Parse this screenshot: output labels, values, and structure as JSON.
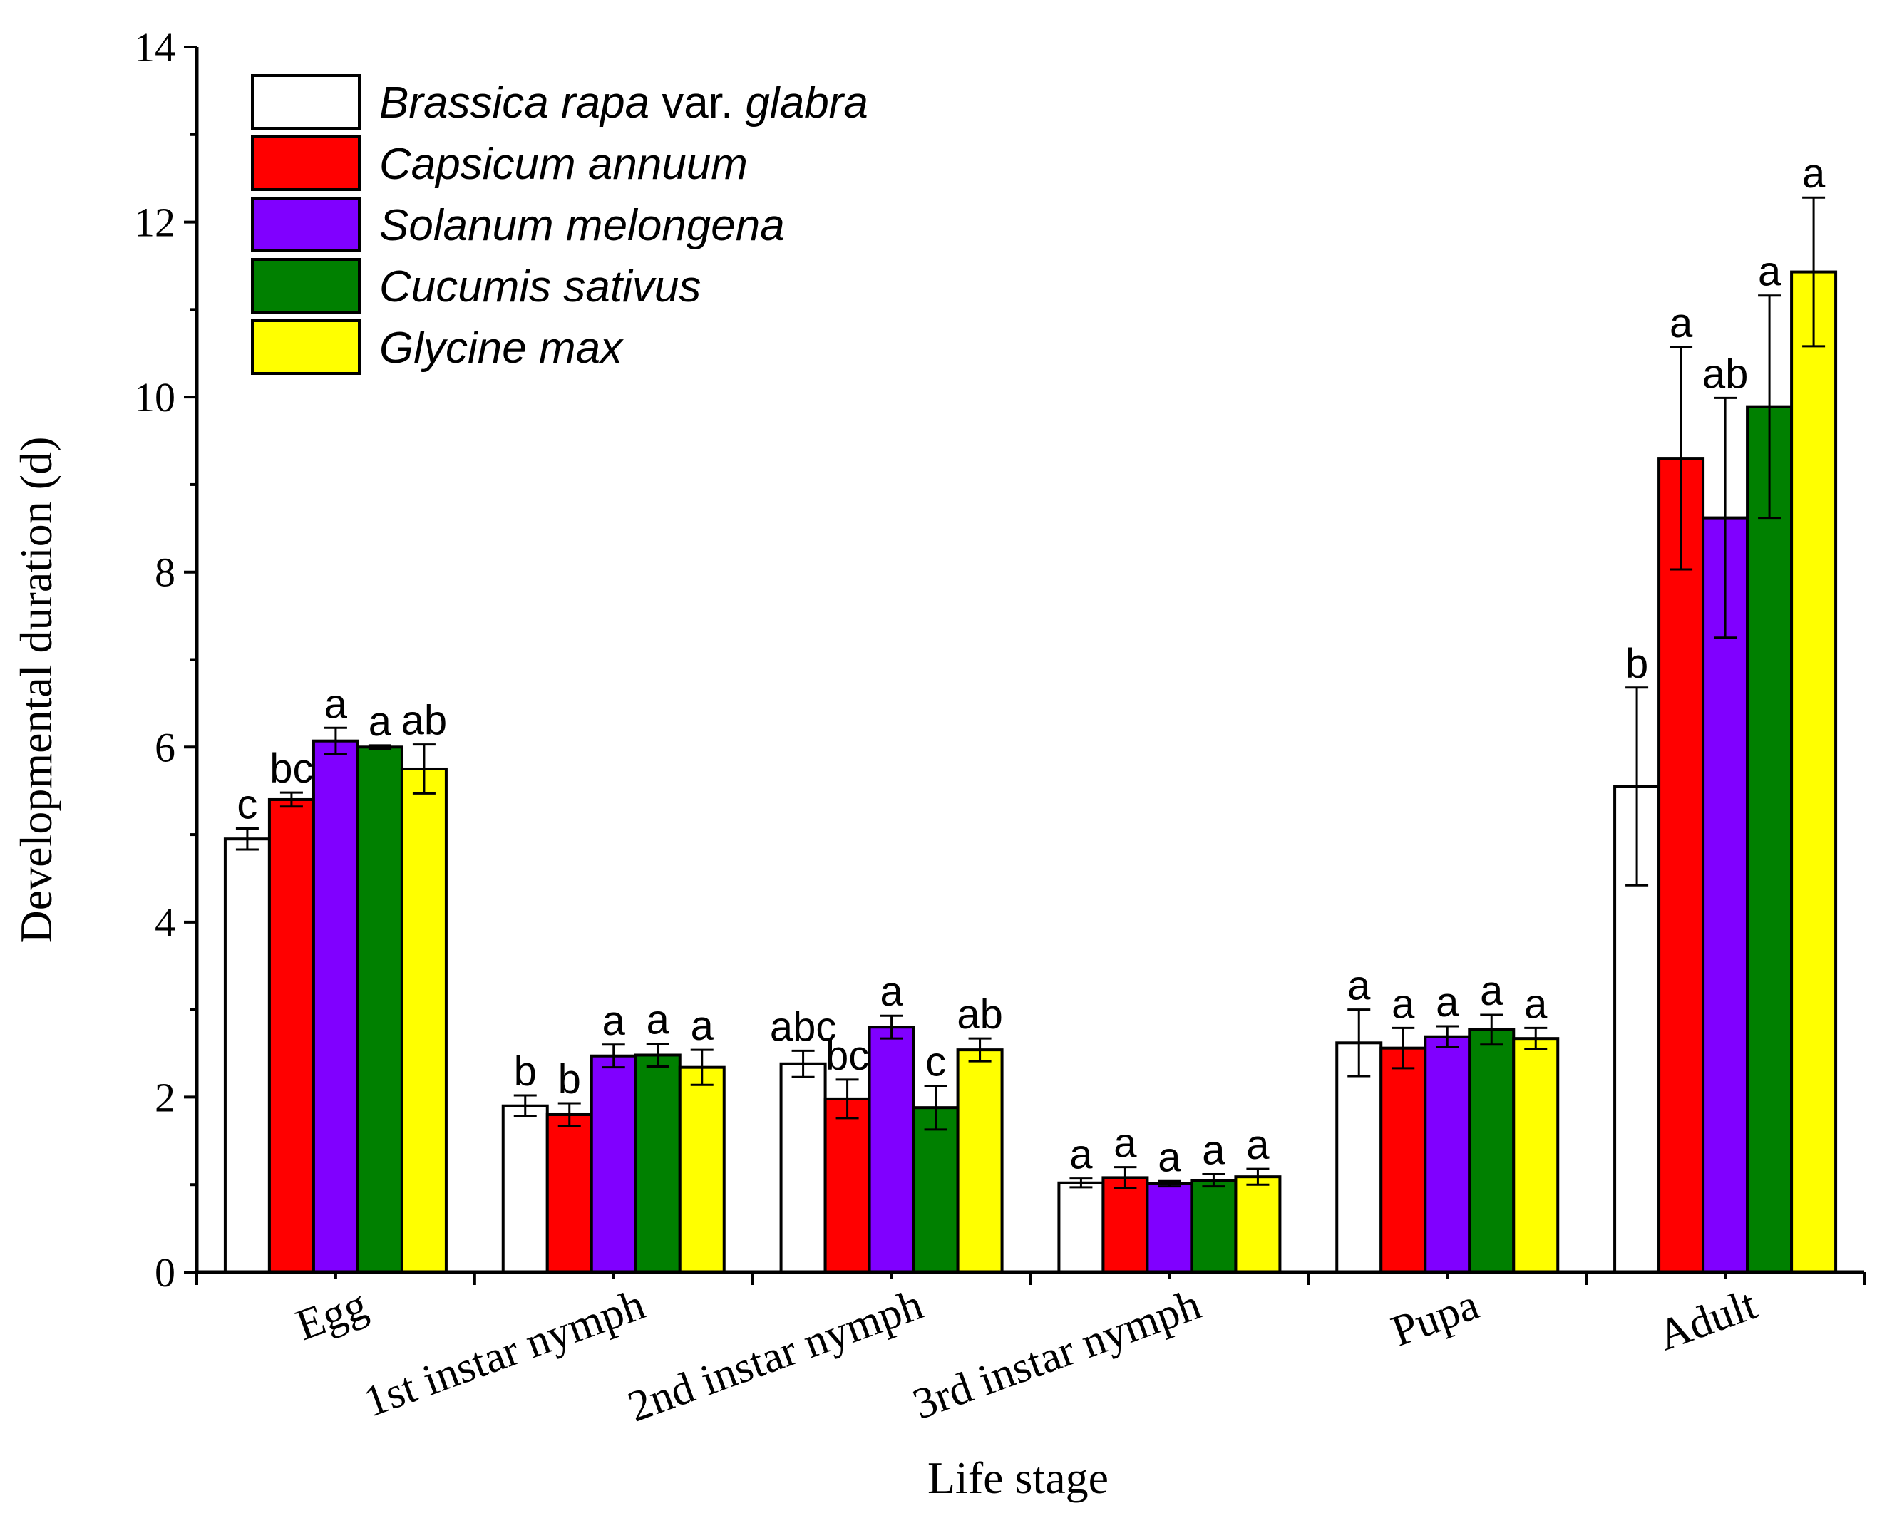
{
  "chart_data": {
    "type": "bar",
    "title": "",
    "xlabel": "Life stage",
    "ylabel": "Developmental duration (d)",
    "ylim": [
      0,
      14
    ],
    "yticks": [
      0,
      2,
      4,
      6,
      8,
      10,
      12,
      14
    ],
    "categories": [
      "Egg",
      "1st instar nymph",
      "2nd instar nymph",
      "3rd instar nymph",
      "Pupa",
      "Adult"
    ],
    "legend_position": "top-left",
    "series": [
      {
        "name": "Brassica rapa var. glabra",
        "legend_parts": [
          {
            "text": "Brassica rapa",
            "italic": true
          },
          {
            "text": " var. ",
            "italic": false
          },
          {
            "text": "glabra",
            "italic": true
          }
        ],
        "color": "#ffffff",
        "values": [
          4.95,
          1.9,
          2.38,
          1.02,
          2.62,
          5.55
        ],
        "errors": [
          0.12,
          0.12,
          0.15,
          0.05,
          0.38,
          1.13
        ],
        "letters": [
          "c",
          "b",
          "abc",
          "a",
          "a",
          "b"
        ]
      },
      {
        "name": "Capsicum annuum",
        "legend_parts": [
          {
            "text": "Capsicum annuum",
            "italic": true
          }
        ],
        "color": "#ff0000",
        "values": [
          5.4,
          1.8,
          1.98,
          1.08,
          2.56,
          9.3
        ],
        "errors": [
          0.08,
          0.13,
          0.22,
          0.12,
          0.23,
          1.27
        ],
        "letters": [
          "bc",
          "b",
          "bc",
          "a",
          "a",
          "a"
        ]
      },
      {
        "name": "Solanum melongena",
        "legend_parts": [
          {
            "text": "Solanum melongena",
            "italic": true
          }
        ],
        "color": "#8000ff",
        "values": [
          6.07,
          2.47,
          2.8,
          1.01,
          2.69,
          8.62
        ],
        "errors": [
          0.15,
          0.13,
          0.13,
          0.03,
          0.12,
          1.37
        ],
        "letters": [
          "a",
          "a",
          "a",
          "a",
          "a",
          "ab"
        ]
      },
      {
        "name": "Cucumis sativus",
        "legend_parts": [
          {
            "text": "Cucumis sativus",
            "italic": true
          }
        ],
        "color": "#008000",
        "values": [
          6.0,
          2.48,
          1.88,
          1.05,
          2.77,
          9.89
        ],
        "errors": [
          0.02,
          0.13,
          0.25,
          0.07,
          0.17,
          1.27
        ],
        "letters": [
          "a",
          "a",
          "c",
          "a",
          "a",
          "a"
        ]
      },
      {
        "name": "Glycine max",
        "legend_parts": [
          {
            "text": "Glycine max",
            "italic": true
          }
        ],
        "color": "#ffff00",
        "values": [
          5.75,
          2.34,
          2.54,
          1.09,
          2.67,
          11.43
        ],
        "errors": [
          0.28,
          0.2,
          0.13,
          0.09,
          0.12,
          0.85
        ],
        "letters": [
          "ab",
          "a",
          "ab",
          "a",
          "a",
          "a"
        ]
      }
    ]
  }
}
